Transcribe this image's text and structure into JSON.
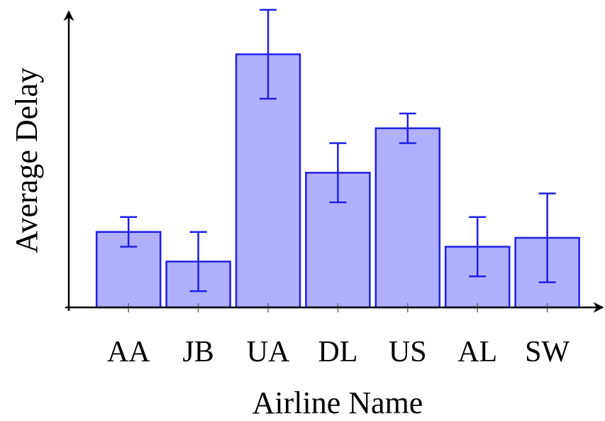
{
  "chart_data": {
    "type": "bar",
    "title": "",
    "xlabel": "Airline Name",
    "ylabel": "Average Delay",
    "categories": [
      "AA",
      "JB",
      "UA",
      "DL",
      "US",
      "AL",
      "SW"
    ],
    "values": [
      5.1,
      3.1,
      17.1,
      9.1,
      12.1,
      4.1,
      4.7
    ],
    "errors": [
      1.0,
      2.0,
      3.0,
      2.0,
      1.0,
      2.0,
      3.0
    ],
    "ylim": [
      0,
      20
    ],
    "grid": false,
    "legend": "none",
    "colors": {
      "bar_fill": "#b0b0ff",
      "bar_stroke": "#1f1fe6",
      "axis": "#000000"
    }
  }
}
